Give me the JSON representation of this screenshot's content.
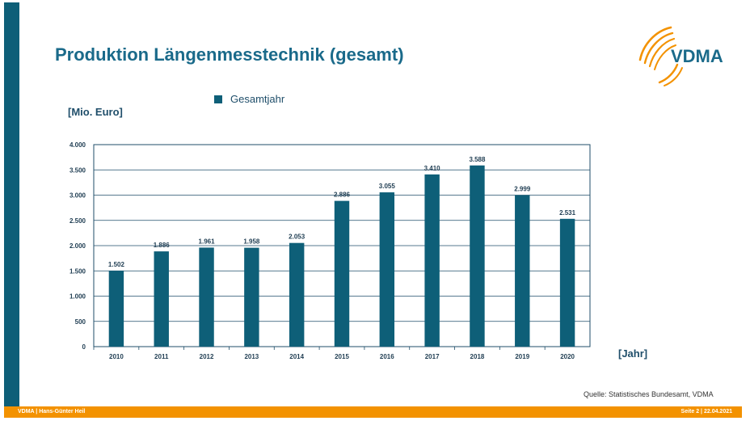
{
  "slide": {
    "title": "Produktion Längenmesstechnik (gesamt)",
    "unit_label": "[Mio. Euro]",
    "x_unit_label": "[Jahr]",
    "source": "Quelle: Statistisches Bundesamt, VDMA",
    "footer_left": "VDMA | Hans-Günter Heil",
    "footer_right": "Seite 2 | 22.04.2021",
    "logo_text": "VDMA"
  },
  "colors": {
    "bar": "#0e5f78",
    "accent": "#f39200",
    "title": "#1a6a8a"
  },
  "chart_data": {
    "type": "bar",
    "categories": [
      "2010",
      "2011",
      "2012",
      "2013",
      "2014",
      "2015",
      "2016",
      "2017",
      "2018",
      "2019",
      "2020"
    ],
    "series": [
      {
        "name": "Gesamtjahr",
        "values": [
          1502,
          1886,
          1961,
          1958,
          2053,
          2886,
          3055,
          3410,
          3588,
          2999,
          2531
        ],
        "labels": [
          "1.502",
          "1.886",
          "1.961",
          "1.958",
          "2.053",
          "2.886",
          "3.055",
          "3.410",
          "3.588",
          "2.999",
          "2.531"
        ]
      }
    ],
    "ylim": [
      0,
      4000
    ],
    "yticks": [
      0,
      500,
      1000,
      1500,
      2000,
      2500,
      3000,
      3500,
      4000
    ],
    "ytick_labels": [
      "0",
      "500",
      "1.000",
      "1.500",
      "2.000",
      "2.500",
      "3.000",
      "3.500",
      "4.000"
    ],
    "ylabel": "[Mio. Euro]",
    "xlabel": "[Jahr]",
    "grid": true,
    "legend": "top"
  }
}
